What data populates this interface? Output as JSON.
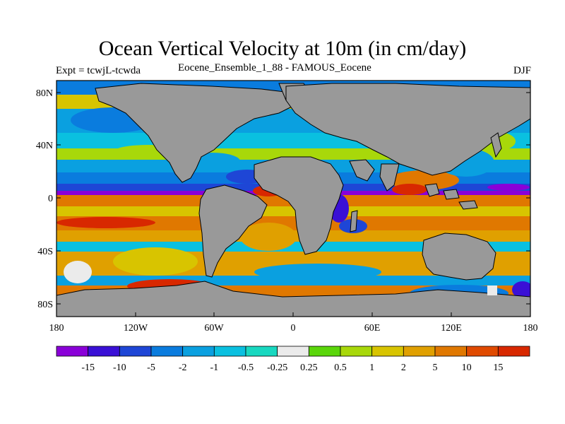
{
  "title": "Ocean Vertical Velocity at 10m (in cm/day)",
  "subtitle_left": "Expt = tcwjL-tcwda",
  "subtitle_center": "Eocene_Ensemble_1_88 - FAMOUS_Eocene",
  "subtitle_right": "DJF",
  "lat_labels": [
    "80N",
    "40N",
    "0",
    "40S",
    "80S"
  ],
  "lon_labels": [
    "180",
    "120W",
    "60W",
    "0",
    "60E",
    "120E",
    "180"
  ],
  "land_color": "#999999",
  "colorbar": {
    "colors": [
      "#8a00d8",
      "#3a10d6",
      "#1e46d6",
      "#0a7cde",
      "#0aa0e0",
      "#0ac0e0",
      "#18d8c0",
      "#ebebeb",
      "#5ad60a",
      "#a8d80a",
      "#d8c400",
      "#e0a000",
      "#e07800",
      "#e04a00",
      "#d82800"
    ],
    "labels": [
      "-15",
      "-10",
      "-5",
      "-2",
      "-1",
      "-0.5",
      "-0.25",
      "0.25",
      "0.5",
      "1",
      "2",
      "5",
      "10",
      "15"
    ]
  }
}
